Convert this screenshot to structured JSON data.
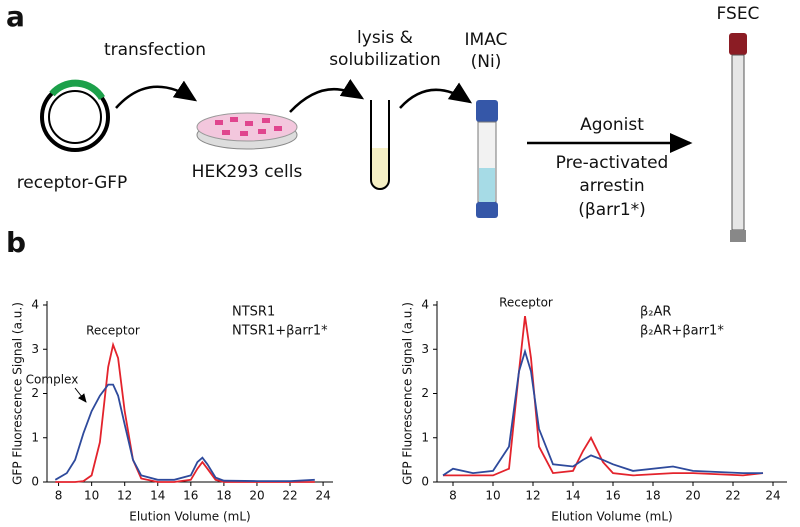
{
  "diagram": {
    "panel_a": "a",
    "panel_b": "b",
    "step1": "transfection",
    "step2_line1": "lysis &",
    "step2_line2": "solubilization",
    "step3_line1": "IMAC",
    "step3_line2": "(Ni)",
    "step4": "FSEC",
    "plasmid": "receptor-GFP",
    "cells": "HEK293 cells",
    "arrow_top": "Agonist",
    "arrow_bottom1": "Pre-activated",
    "arrow_bottom2": "arrestin",
    "arrow_bottom3": "(βarr1*)"
  },
  "chart_data": [
    {
      "type": "line",
      "xlabel": "Elution Volume (mL)",
      "ylabel": "GFP Fluorescence Signal (a.u.)",
      "annotations": [
        "Receptor",
        "Complex"
      ],
      "x": [
        7.8,
        8.5,
        9,
        9.5,
        10,
        10.5,
        11,
        11.3,
        11.6,
        12,
        12.5,
        13,
        14,
        15,
        16,
        16.4,
        16.7,
        17,
        17.5,
        18,
        20,
        22,
        23.5
      ],
      "series": [
        {
          "name": "NTSR1",
          "color": "#e3232c",
          "values": [
            0,
            0,
            0,
            0.02,
            0.15,
            0.9,
            2.6,
            3.1,
            2.8,
            1.6,
            0.5,
            0.08,
            0,
            0,
            0.05,
            0.3,
            0.45,
            0.3,
            0.05,
            0,
            0,
            0,
            0
          ]
        },
        {
          "name": "NTSR1+βarr1*",
          "color": "#2e4a9c",
          "values": [
            0.05,
            0.2,
            0.5,
            1.1,
            1.6,
            1.95,
            2.2,
            2.2,
            1.95,
            1.3,
            0.5,
            0.15,
            0.05,
            0.05,
            0.15,
            0.45,
            0.55,
            0.4,
            0.1,
            0.03,
            0.02,
            0.02,
            0.05
          ]
        }
      ],
      "xlim": [
        7.3,
        24.6
      ],
      "ylim": [
        0,
        4
      ],
      "xticks": [
        8,
        10,
        12,
        14,
        16,
        18,
        20,
        22,
        24
      ],
      "yticks": [
        0,
        1,
        2,
        3,
        4
      ]
    },
    {
      "type": "line",
      "xlabel": "Elution Volume (mL)",
      "ylabel": "GFP Fluorescence Signal (a.u.)",
      "annotations": [
        "Receptor"
      ],
      "x": [
        7.5,
        8,
        9,
        10,
        10.8,
        11.3,
        11.6,
        11.9,
        12.3,
        13,
        14,
        14.5,
        14.9,
        15.5,
        16,
        17,
        19,
        20,
        22.5,
        23.5
      ],
      "series": [
        {
          "name": "β₂AR",
          "color": "#e3232c",
          "values": [
            0.15,
            0.15,
            0.15,
            0.15,
            0.3,
            2.5,
            3.75,
            2.8,
            0.8,
            0.2,
            0.25,
            0.7,
            1.0,
            0.45,
            0.2,
            0.15,
            0.2,
            0.2,
            0.15,
            0.2
          ]
        },
        {
          "name": "β₂AR+βarr1*",
          "color": "#2e4a9c",
          "values": [
            0.15,
            0.3,
            0.2,
            0.25,
            0.8,
            2.5,
            2.95,
            2.5,
            1.2,
            0.4,
            0.35,
            0.5,
            0.6,
            0.5,
            0.4,
            0.25,
            0.35,
            0.25,
            0.2,
            0.2
          ]
        }
      ],
      "xlim": [
        7.2,
        24.7
      ],
      "ylim": [
        0,
        4
      ],
      "xticks": [
        8,
        10,
        12,
        14,
        16,
        18,
        20,
        22,
        24
      ],
      "yticks": [
        0,
        1,
        2,
        3,
        4
      ]
    }
  ]
}
